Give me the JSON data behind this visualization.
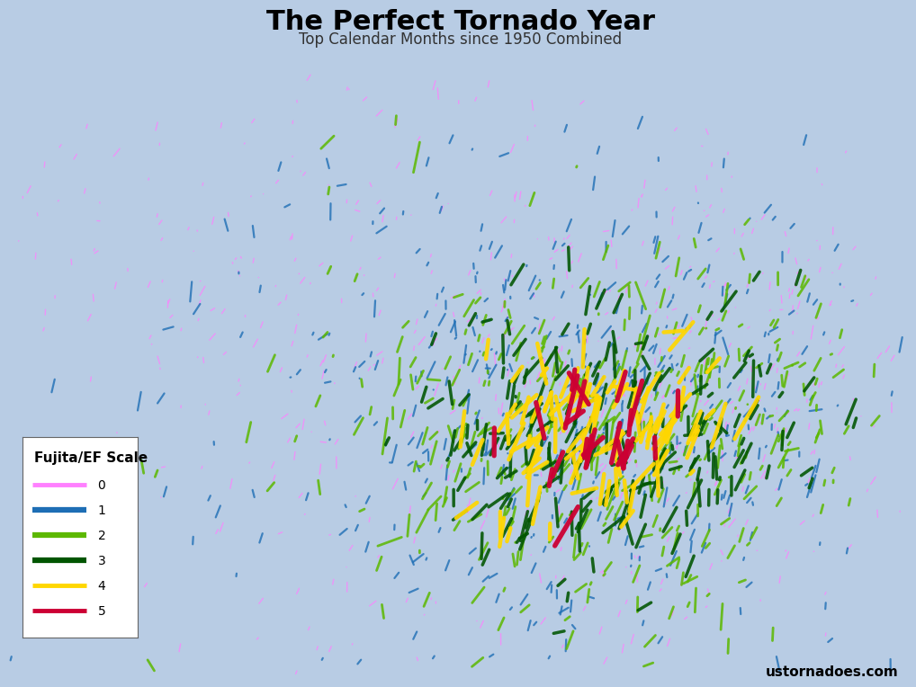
{
  "title": "The Perfect Tornado Year",
  "subtitle": "Top Calendar Months since 1950 Combined",
  "watermark": "ustornadoes.com",
  "background_color": "#b8cce4",
  "map_face_color": "#ffffff",
  "map_edge_color": "#222222",
  "scale_colors": [
    "#ff80ff",
    "#1e6eb5",
    "#5cb800",
    "#005500",
    "#ffd700",
    "#cc0033"
  ],
  "scale_labels": [
    "0",
    "1",
    "2",
    "3",
    "4",
    "5"
  ],
  "legend_title": "Fujita/EF Scale",
  "map_extent": [
    -125.0,
    -66.5,
    24.0,
    50.0
  ],
  "title_fontsize": 22,
  "subtitle_fontsize": 12,
  "watermark_fontsize": 11,
  "legend_fontsize": 10,
  "legend_title_fontsize": 11
}
